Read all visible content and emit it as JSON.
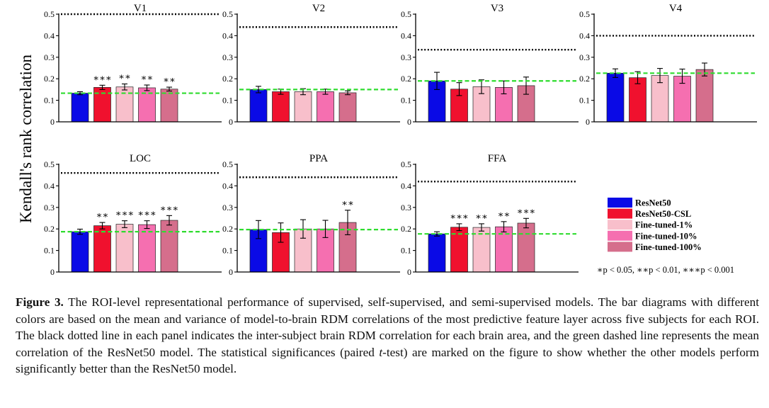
{
  "figure": {
    "ylabel": "Kendall's rank correlation",
    "caption_label": "Figure 3.",
    "caption_pre": " The ROI-level representational performance of supervised, self-supervised, and semi-supervised models. The bar diagrams with different colors are based on the mean and variance of model-to-brain RDM correlations of the most predictive feature layer across five subjects for each ROI. The black dotted line in each panel indicates the inter-subject brain RDM correlation for each brain area, and the green dashed line represents the mean correlation of the ResNet50 model. The statistical significances (paired ",
    "caption_italic": "t",
    "caption_post": "-test) are marked on the figure to show whether the other models perform significantly better than the ResNet50 model.",
    "significance_note": "∗p < 0.05,  ∗∗p < 0.01,  ∗∗∗p < 0.001"
  },
  "chart_data": {
    "type": "bar",
    "ylim": [
      0,
      0.5
    ],
    "yticks": [
      "0",
      "0.1",
      "0.2",
      "0.3",
      "0.4",
      "0.5"
    ],
    "series_names": [
      "ResNet50",
      "ResNet50-CSL",
      "Fine-tuned-1%",
      "Fine-tuned-10%",
      "Fine-tuned-100%"
    ],
    "colors": [
      "#0a0ae6",
      "#f0112e",
      "#f8bfcb",
      "#f56fb0",
      "#d56e8c"
    ],
    "reference_line_color": "#2fdc2f",
    "ceiling_line_color": "#000000",
    "panels": [
      {
        "title": "V1",
        "values": [
          0.133,
          0.16,
          0.162,
          0.158,
          0.152
        ],
        "errors": [
          0.007,
          0.01,
          0.014,
          0.013,
          0.009
        ],
        "stars": [
          "",
          "***",
          "**",
          "**",
          "**"
        ],
        "ceiling": 0.5
      },
      {
        "title": "V2",
        "values": [
          0.15,
          0.14,
          0.14,
          0.14,
          0.135
        ],
        "errors": [
          0.015,
          0.012,
          0.014,
          0.012,
          0.009
        ],
        "stars": [
          "",
          "",
          "",
          "",
          ""
        ],
        "ceiling": 0.44
      },
      {
        "title": "V3",
        "values": [
          0.19,
          0.152,
          0.163,
          0.16,
          0.168
        ],
        "errors": [
          0.04,
          0.03,
          0.032,
          0.03,
          0.04
        ],
        "stars": [
          "",
          "",
          "",
          "",
          ""
        ],
        "ceiling": 0.335
      },
      {
        "title": "V4",
        "values": [
          0.226,
          0.205,
          0.215,
          0.212,
          0.243
        ],
        "errors": [
          0.02,
          0.028,
          0.033,
          0.033,
          0.03
        ],
        "stars": [
          "",
          "",
          "",
          "",
          ""
        ],
        "ceiling": 0.4
      },
      {
        "title": "LOC",
        "values": [
          0.187,
          0.215,
          0.222,
          0.22,
          0.24
        ],
        "errors": [
          0.012,
          0.015,
          0.016,
          0.018,
          0.022
        ],
        "stars": [
          "",
          "**",
          "***",
          "***",
          "***"
        ],
        "ceiling": 0.46
      },
      {
        "title": "PPA",
        "values": [
          0.197,
          0.183,
          0.2,
          0.2,
          0.23
        ],
        "errors": [
          0.042,
          0.045,
          0.043,
          0.04,
          0.057
        ],
        "stars": [
          "",
          "",
          "",
          "",
          "**"
        ],
        "ceiling": 0.44
      },
      {
        "title": "FFA",
        "values": [
          0.177,
          0.208,
          0.207,
          0.21,
          0.227
        ],
        "errors": [
          0.01,
          0.016,
          0.017,
          0.024,
          0.022
        ],
        "stars": [
          "",
          "***",
          "**",
          "**",
          "***"
        ],
        "ceiling": 0.42
      }
    ]
  }
}
